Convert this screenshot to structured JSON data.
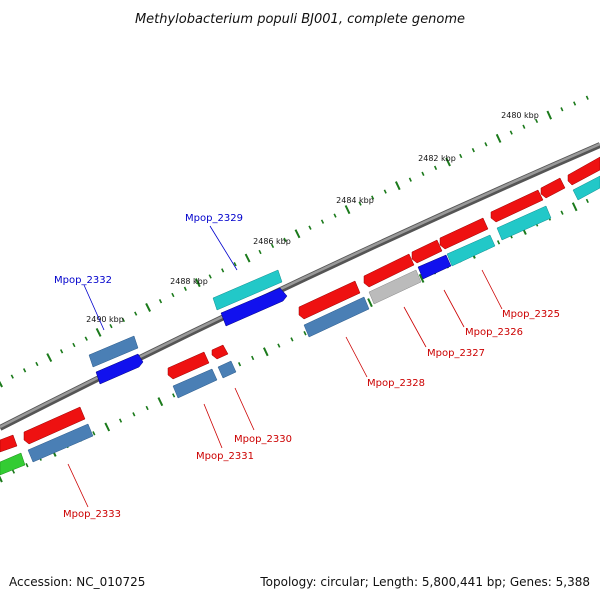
{
  "title": "Methylobacterium populi BJ001, complete genome",
  "footer": {
    "accession": "Accession: NC_010725",
    "summary": "Topology: circular; Length: 5,800,441 bp; Genes: 5,388"
  },
  "ruler": [
    "2480 kbp",
    "2482 kbp",
    "2484 kbp",
    "2486 kbp",
    "2488 kbp",
    "2490 kbp"
  ],
  "genes": [
    {
      "name": "Mpop_2325",
      "strand": "reverse"
    },
    {
      "name": "Mpop_2326",
      "strand": "reverse"
    },
    {
      "name": "Mpop_2327",
      "strand": "reverse"
    },
    {
      "name": "Mpop_2328",
      "strand": "reverse"
    },
    {
      "name": "Mpop_2329",
      "strand": "forward"
    },
    {
      "name": "Mpop_2330",
      "strand": "reverse"
    },
    {
      "name": "Mpop_2331",
      "strand": "reverse"
    },
    {
      "name": "Mpop_2332",
      "strand": "forward"
    },
    {
      "name": "Mpop_2333",
      "strand": "reverse"
    }
  ],
  "colors": {
    "backbone": "#7a7a7a",
    "tick": "#1b7a1b",
    "gene_red": "#ee1111",
    "gene_steel": "#4a7fb5",
    "gene_blue": "#1111ee",
    "gene_cyan": "#22c8c8",
    "gene_grey": "#bbbbbb",
    "gene_green": "#33cc33",
    "label_forward": "#0000cc",
    "label_reverse": "#cc0000"
  }
}
